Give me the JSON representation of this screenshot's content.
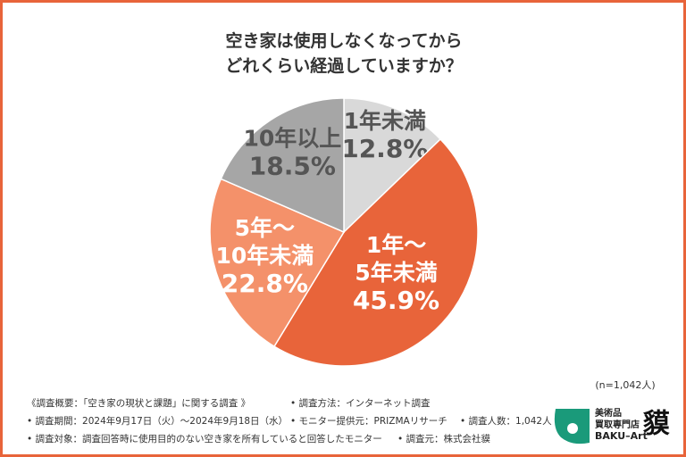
{
  "chart_data": {
    "type": "pie",
    "title": "空き家は使用しなくなってから\nどれくらい経過していますか？",
    "categories": [
      "1年未満",
      "1年～\n5年未満",
      "5年～\n10年未満",
      "10年以上"
    ],
    "values": [
      12.8,
      45.9,
      22.8,
      18.5
    ],
    "value_labels": [
      "12.8%",
      "45.9%",
      "22.8%",
      "18.5%"
    ],
    "colors": [
      "#d9d9d9",
      "#e8643a",
      "#f4916a",
      "#a6a6a6"
    ],
    "sample_note": "(n=1,042人)",
    "notes": [
      [
        "《調査概要：「空き家の現状と課題」に関する調査 》",
        "• 調査方法：インターネット調査"
      ],
      [
        "• 調査期間：2024年9月17日（火）～2024年9月18日（水）",
        "• モニター提供元：PRIZMAリサーチ",
        "• 調査人数：1,042人"
      ],
      [
        "• 調査対象：調査回答時に使用目的のない空き家を所有していると回答したモニター",
        "• 調査元：株式会社貘"
      ]
    ],
    "logo": {
      "lines": [
        "美術品",
        "買取専門店",
        "BAKU–Art"
      ],
      "mark": "貘"
    }
  }
}
